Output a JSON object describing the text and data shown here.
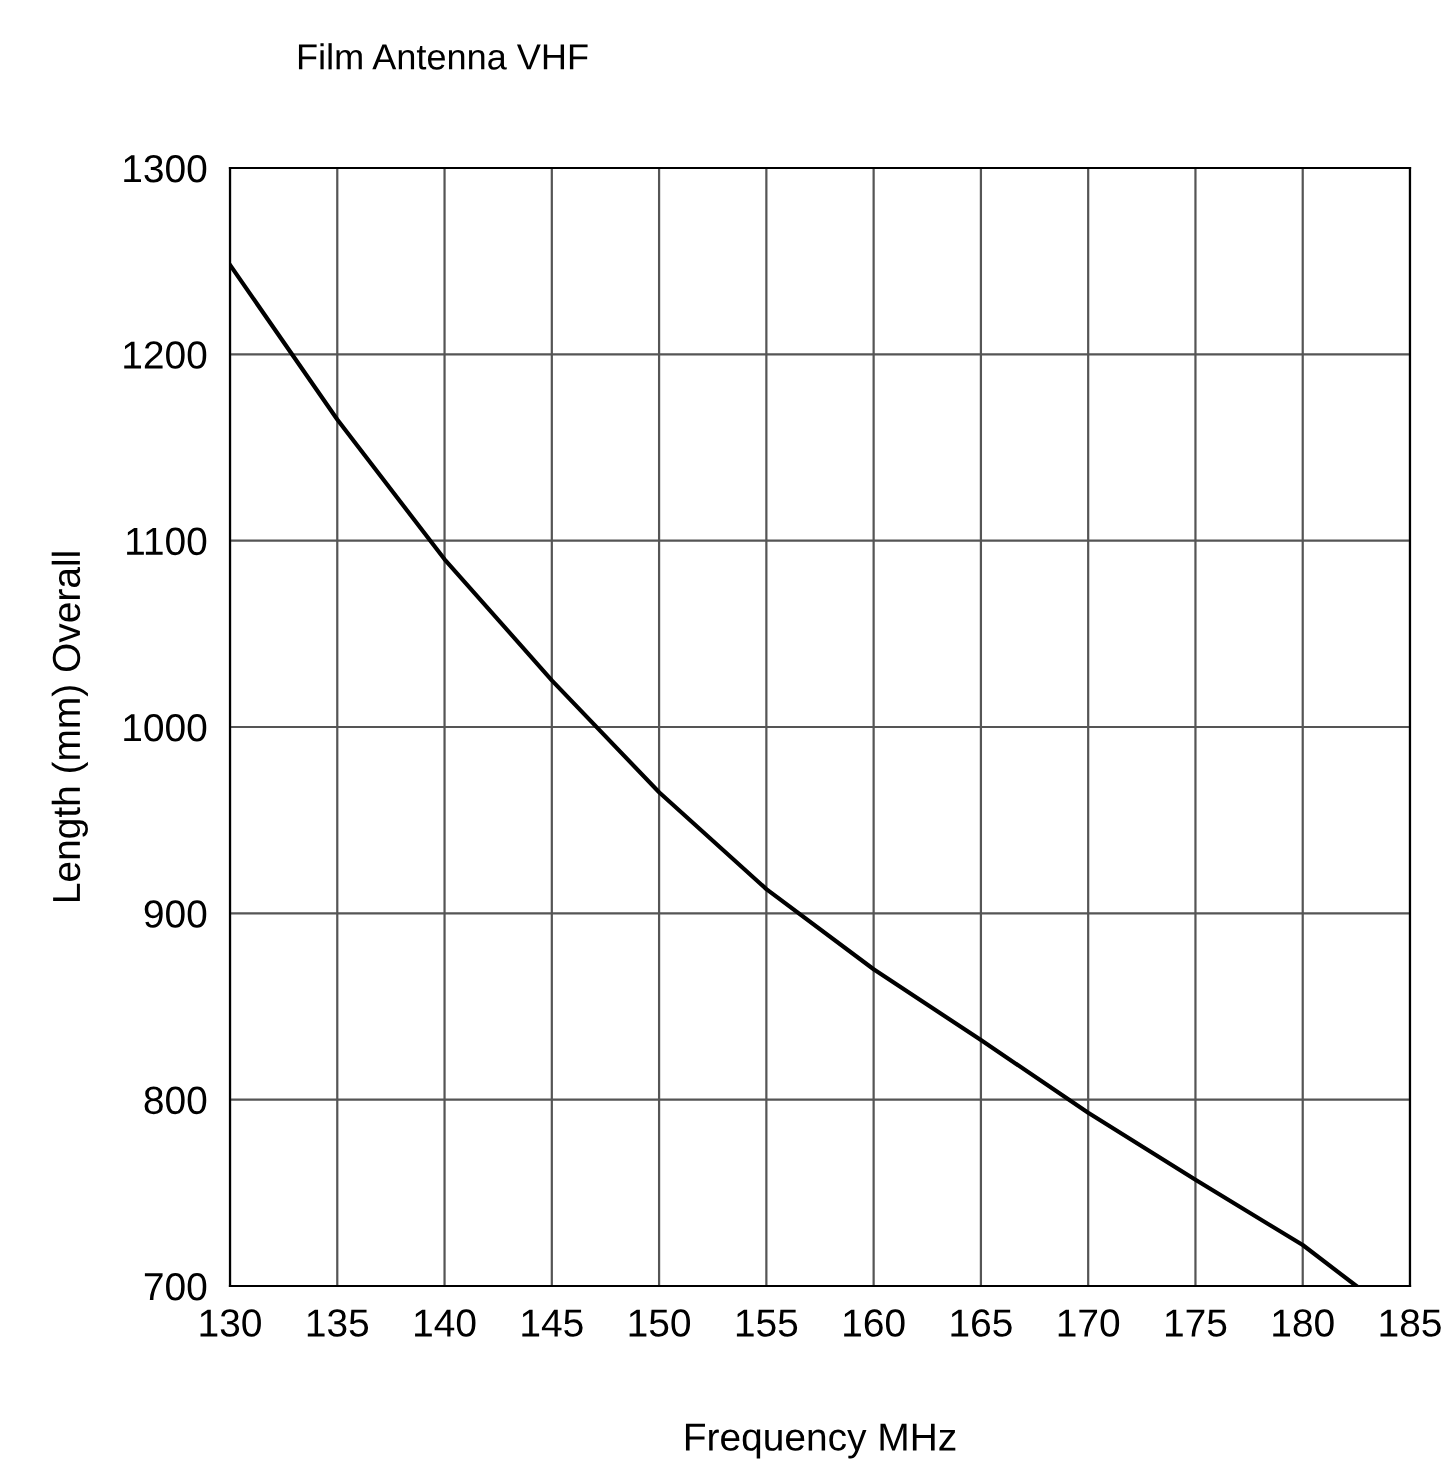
{
  "chart_data": {
    "type": "line",
    "title": "Film Antenna VHF",
    "xlabel": "Frequency MHz",
    "ylabel": "Length (mm) Overall",
    "series": [
      {
        "color": "#000000",
        "x": [
          130,
          135,
          140,
          145,
          150,
          155,
          160,
          165,
          170,
          175,
          180,
          182.5
        ],
        "values": [
          1248,
          1165,
          1090,
          1025,
          965,
          913,
          870,
          832,
          793,
          757,
          722,
          700
        ]
      }
    ],
    "xlim": [
      130,
      185
    ],
    "xticks": [
      130,
      135,
      140,
      145,
      150,
      155,
      160,
      165,
      170,
      175,
      180,
      185
    ],
    "ylim": [
      700,
      1300
    ],
    "yticks": [
      700,
      800,
      900,
      1000,
      1100,
      1200,
      1300
    ],
    "grid": true,
    "marker": "none",
    "line_style": "solid"
  }
}
